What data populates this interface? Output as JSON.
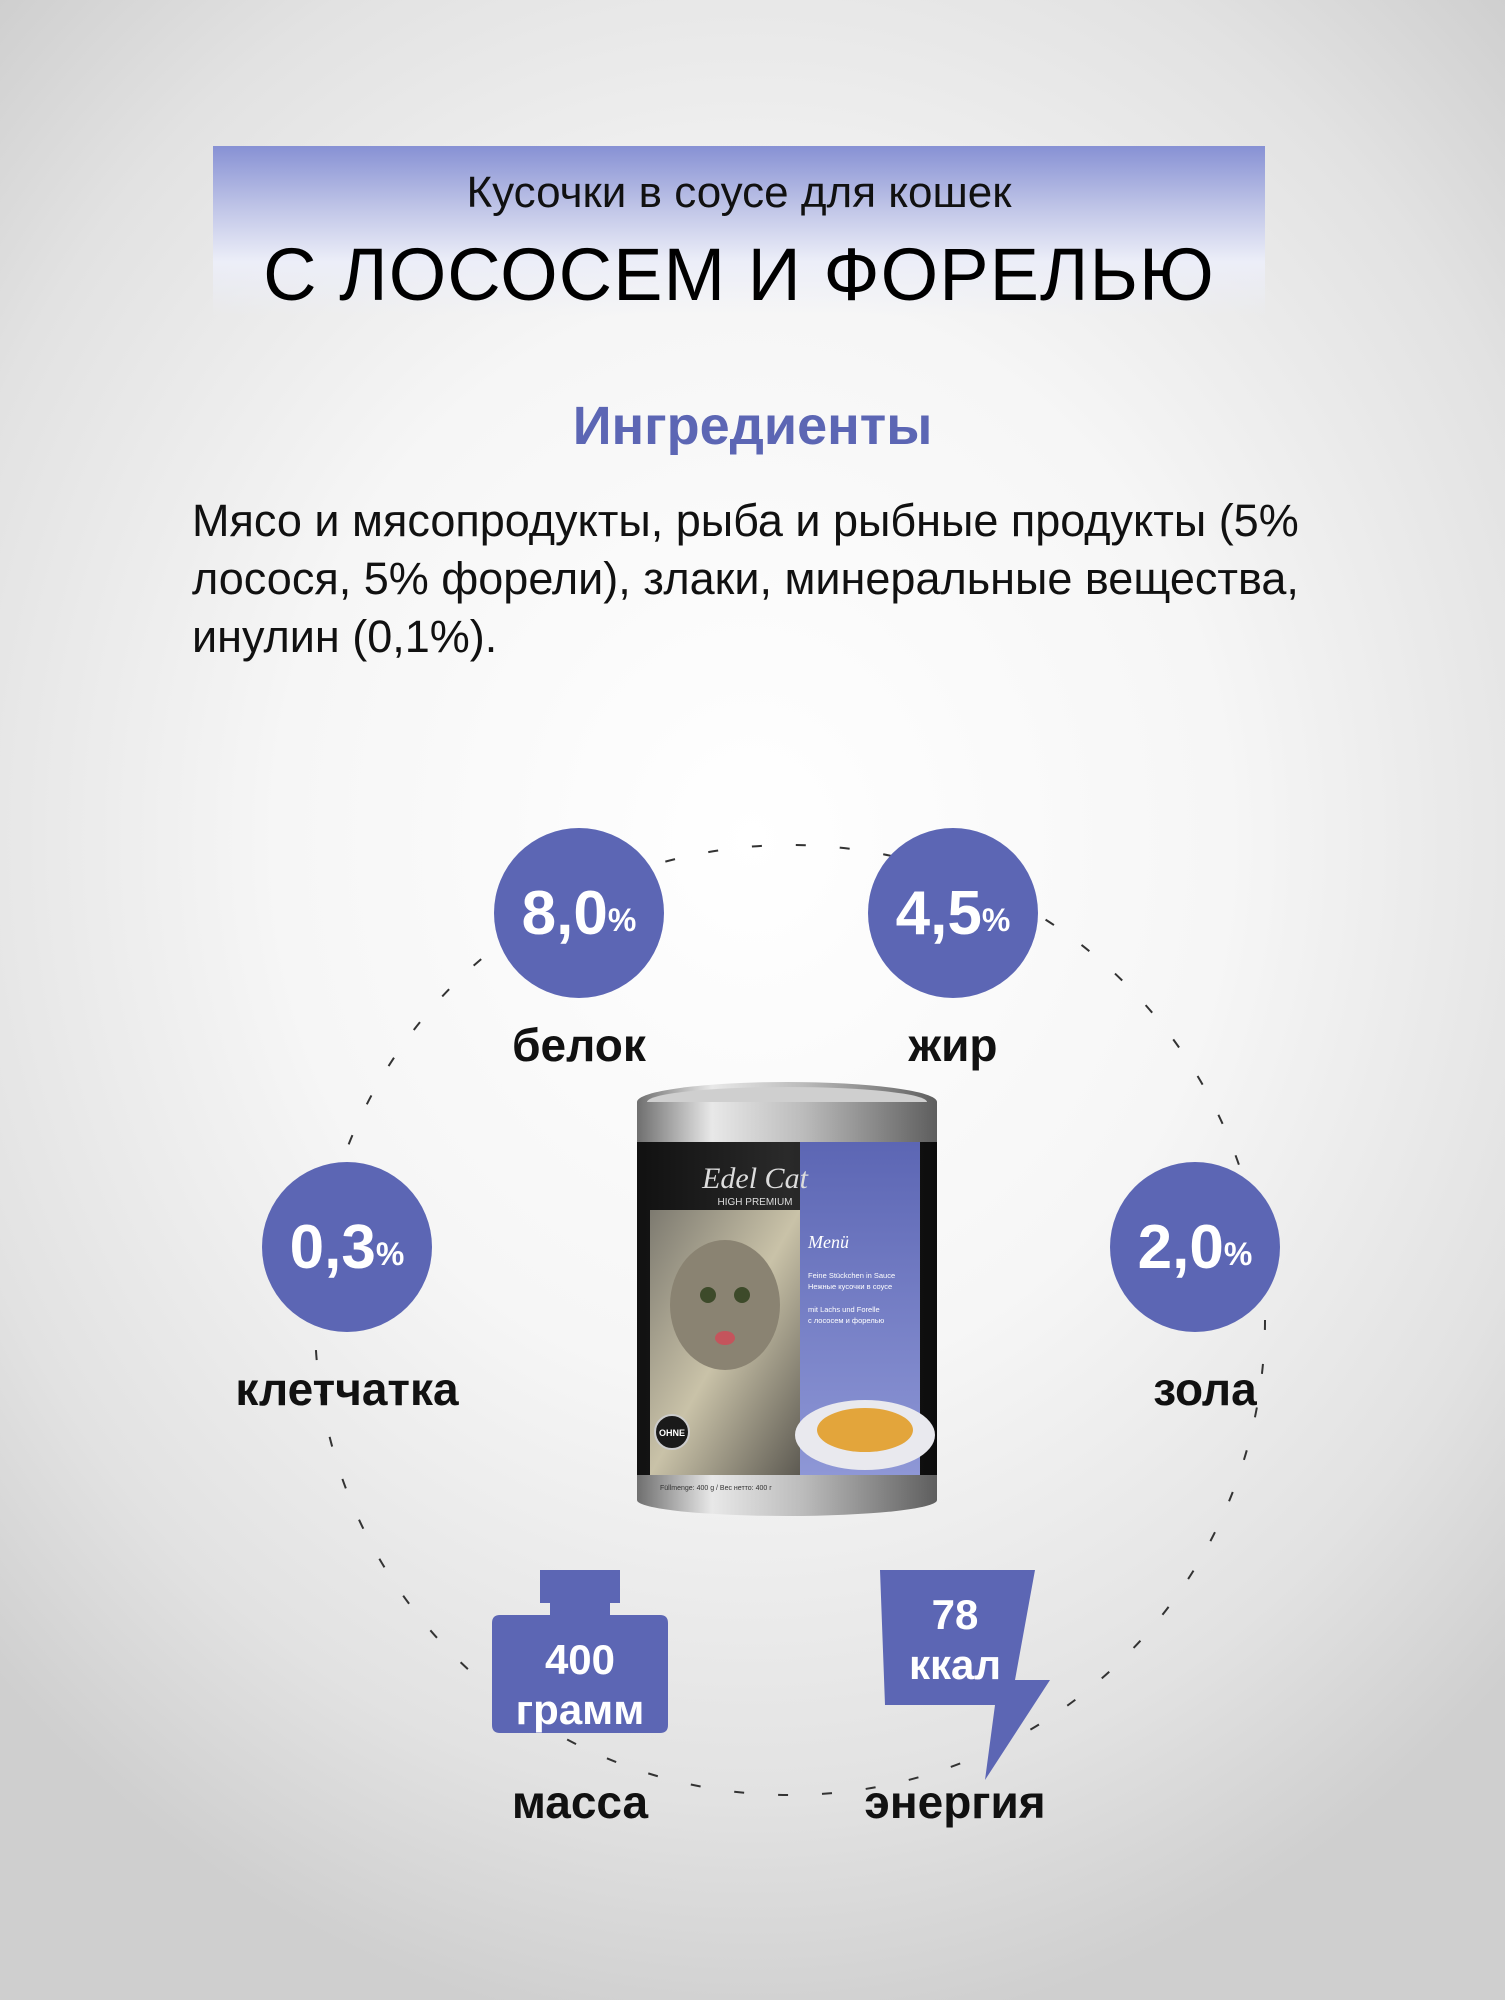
{
  "header": {
    "subtitle": "Кусочки в соусе для кошек",
    "title": "С ЛОСОСЕМ И ФОРЕЛЬЮ"
  },
  "ingredients": {
    "heading": "Ингредиенты",
    "text": "Мясо и мясопродукты, рыба и рыбные продукты (5% лосося, 5% форели), злаки, минеральные вещества, инулин (0,1%)."
  },
  "stats": {
    "protein": {
      "value": "8,0",
      "unit": "%",
      "label": "белок"
    },
    "fat": {
      "value": "4,5",
      "unit": "%",
      "label": "жир"
    },
    "fiber": {
      "value": "0,3",
      "unit": "%",
      "label": "клетчатка"
    },
    "ash": {
      "value": "2,0",
      "unit": "%",
      "label": "зола"
    }
  },
  "mass": {
    "value": "400",
    "unit": "грамм",
    "label": "масса"
  },
  "energy": {
    "value": "78",
    "unit": "ккал",
    "label": "энергия"
  },
  "can": {
    "brand": "Edel Cat",
    "line": "HIGH PREMIUM",
    "menu": "Menü",
    "de_desc": "Feine Stückchen in Sauce",
    "ru_desc": "Нежные кусочки в соусе",
    "de_flavor": "mit Lachs und Forelle",
    "ru_flavor": "с лососем и форелью",
    "badge": "OHNE",
    "weight_line": "Füllmenge: 400 g / Вес нетто: 400 г"
  },
  "colors": {
    "accent": "#5c66b4",
    "text": "#111111"
  }
}
